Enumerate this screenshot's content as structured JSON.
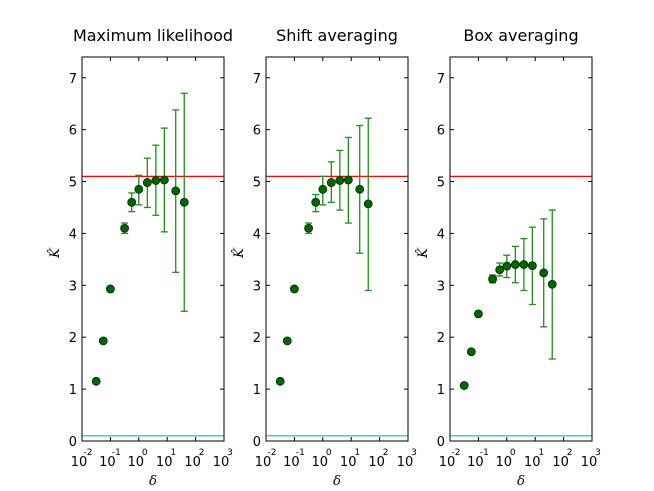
{
  "chart_data": [
    {
      "type": "scatter",
      "title": "Maximum likelihood",
      "xlabel": "δ",
      "ylabel": "K̂",
      "xscale": "log",
      "xlim_exponents": [
        -2,
        3
      ],
      "ylim": [
        0,
        7.4
      ],
      "yticks": [
        0,
        1,
        2,
        3,
        4,
        5,
        6,
        7
      ],
      "reference_lines": [
        {
          "name": "red-line",
          "y": 5.1,
          "color": "#ff0000"
        },
        {
          "name": "cyan-line",
          "y": 0.1,
          "color": "#00bfbf"
        }
      ],
      "marker_color": "#006400",
      "errorbar_color": "#228b22",
      "points": [
        {
          "x_exp": -1.5,
          "y": 1.15,
          "lo": 1.15,
          "hi": 1.15
        },
        {
          "x_exp": -1.25,
          "y": 1.93,
          "lo": 1.93,
          "hi": 1.93
        },
        {
          "x_exp": -1.0,
          "y": 2.93,
          "lo": 2.93,
          "hi": 2.93
        },
        {
          "x_exp": -0.5,
          "y": 4.1,
          "lo": 4.0,
          "hi": 4.2
        },
        {
          "x_exp": -0.25,
          "y": 4.6,
          "lo": 4.42,
          "hi": 4.78
        },
        {
          "x_exp": 0.0,
          "y": 4.85,
          "lo": 4.55,
          "hi": 5.12
        },
        {
          "x_exp": 0.3,
          "y": 4.98,
          "lo": 4.5,
          "hi": 5.45
        },
        {
          "x_exp": 0.6,
          "y": 5.02,
          "lo": 4.35,
          "hi": 5.7
        },
        {
          "x_exp": 0.9,
          "y": 5.03,
          "lo": 4.03,
          "hi": 6.03
        },
        {
          "x_exp": 1.3,
          "y": 4.82,
          "lo": 3.25,
          "hi": 6.38
        },
        {
          "x_exp": 1.6,
          "y": 4.6,
          "lo": 2.5,
          "hi": 6.7
        }
      ]
    },
    {
      "type": "scatter",
      "title": "Shift averaging",
      "xlabel": "δ",
      "ylabel": "K̂",
      "xscale": "log",
      "xlim_exponents": [
        -2,
        3
      ],
      "ylim": [
        0,
        7.4
      ],
      "yticks": [
        0,
        1,
        2,
        3,
        4,
        5,
        6,
        7
      ],
      "reference_lines": [
        {
          "name": "red-line",
          "y": 5.1,
          "color": "#ff0000"
        },
        {
          "name": "cyan-line",
          "y": 0.1,
          "color": "#00bfbf"
        }
      ],
      "marker_color": "#006400",
      "errorbar_color": "#228b22",
      "points": [
        {
          "x_exp": -1.5,
          "y": 1.15,
          "lo": 1.15,
          "hi": 1.15
        },
        {
          "x_exp": -1.25,
          "y": 1.93,
          "lo": 1.93,
          "hi": 1.93
        },
        {
          "x_exp": -1.0,
          "y": 2.93,
          "lo": 2.93,
          "hi": 2.93
        },
        {
          "x_exp": -0.5,
          "y": 4.1,
          "lo": 4.0,
          "hi": 4.2
        },
        {
          "x_exp": -0.25,
          "y": 4.6,
          "lo": 4.42,
          "hi": 4.75
        },
        {
          "x_exp": 0.0,
          "y": 4.85,
          "lo": 4.55,
          "hi": 5.1
        },
        {
          "x_exp": 0.3,
          "y": 4.98,
          "lo": 4.6,
          "hi": 5.38
        },
        {
          "x_exp": 0.6,
          "y": 5.02,
          "lo": 4.45,
          "hi": 5.6
        },
        {
          "x_exp": 0.9,
          "y": 5.03,
          "lo": 4.2,
          "hi": 5.85
        },
        {
          "x_exp": 1.3,
          "y": 4.85,
          "lo": 3.62,
          "hi": 6.08
        },
        {
          "x_exp": 1.6,
          "y": 4.57,
          "lo": 2.9,
          "hi": 6.22
        }
      ]
    },
    {
      "type": "scatter",
      "title": "Box averaging",
      "xlabel": "δ",
      "ylabel": "K̂",
      "xscale": "log",
      "xlim_exponents": [
        -2,
        3
      ],
      "ylim": [
        0,
        7.4
      ],
      "yticks": [
        0,
        1,
        2,
        3,
        4,
        5,
        6,
        7
      ],
      "reference_lines": [
        {
          "name": "red-line",
          "y": 5.1,
          "color": "#ff0000"
        },
        {
          "name": "cyan-line",
          "y": 0.1,
          "color": "#00bfbf"
        }
      ],
      "marker_color": "#006400",
      "errorbar_color": "#228b22",
      "points": [
        {
          "x_exp": -1.5,
          "y": 1.07,
          "lo": 1.07,
          "hi": 1.07
        },
        {
          "x_exp": -1.25,
          "y": 1.72,
          "lo": 1.72,
          "hi": 1.72
        },
        {
          "x_exp": -1.0,
          "y": 2.45,
          "lo": 2.45,
          "hi": 2.45
        },
        {
          "x_exp": -0.5,
          "y": 3.12,
          "lo": 3.05,
          "hi": 3.2
        },
        {
          "x_exp": -0.25,
          "y": 3.3,
          "lo": 3.18,
          "hi": 3.43
        },
        {
          "x_exp": 0.0,
          "y": 3.37,
          "lo": 3.15,
          "hi": 3.58
        },
        {
          "x_exp": 0.3,
          "y": 3.4,
          "lo": 3.05,
          "hi": 3.75
        },
        {
          "x_exp": 0.6,
          "y": 3.4,
          "lo": 2.9,
          "hi": 3.9
        },
        {
          "x_exp": 0.9,
          "y": 3.38,
          "lo": 2.63,
          "hi": 4.12
        },
        {
          "x_exp": 1.3,
          "y": 3.24,
          "lo": 2.2,
          "hi": 4.28
        },
        {
          "x_exp": 1.6,
          "y": 3.02,
          "lo": 1.58,
          "hi": 4.45
        }
      ]
    }
  ]
}
